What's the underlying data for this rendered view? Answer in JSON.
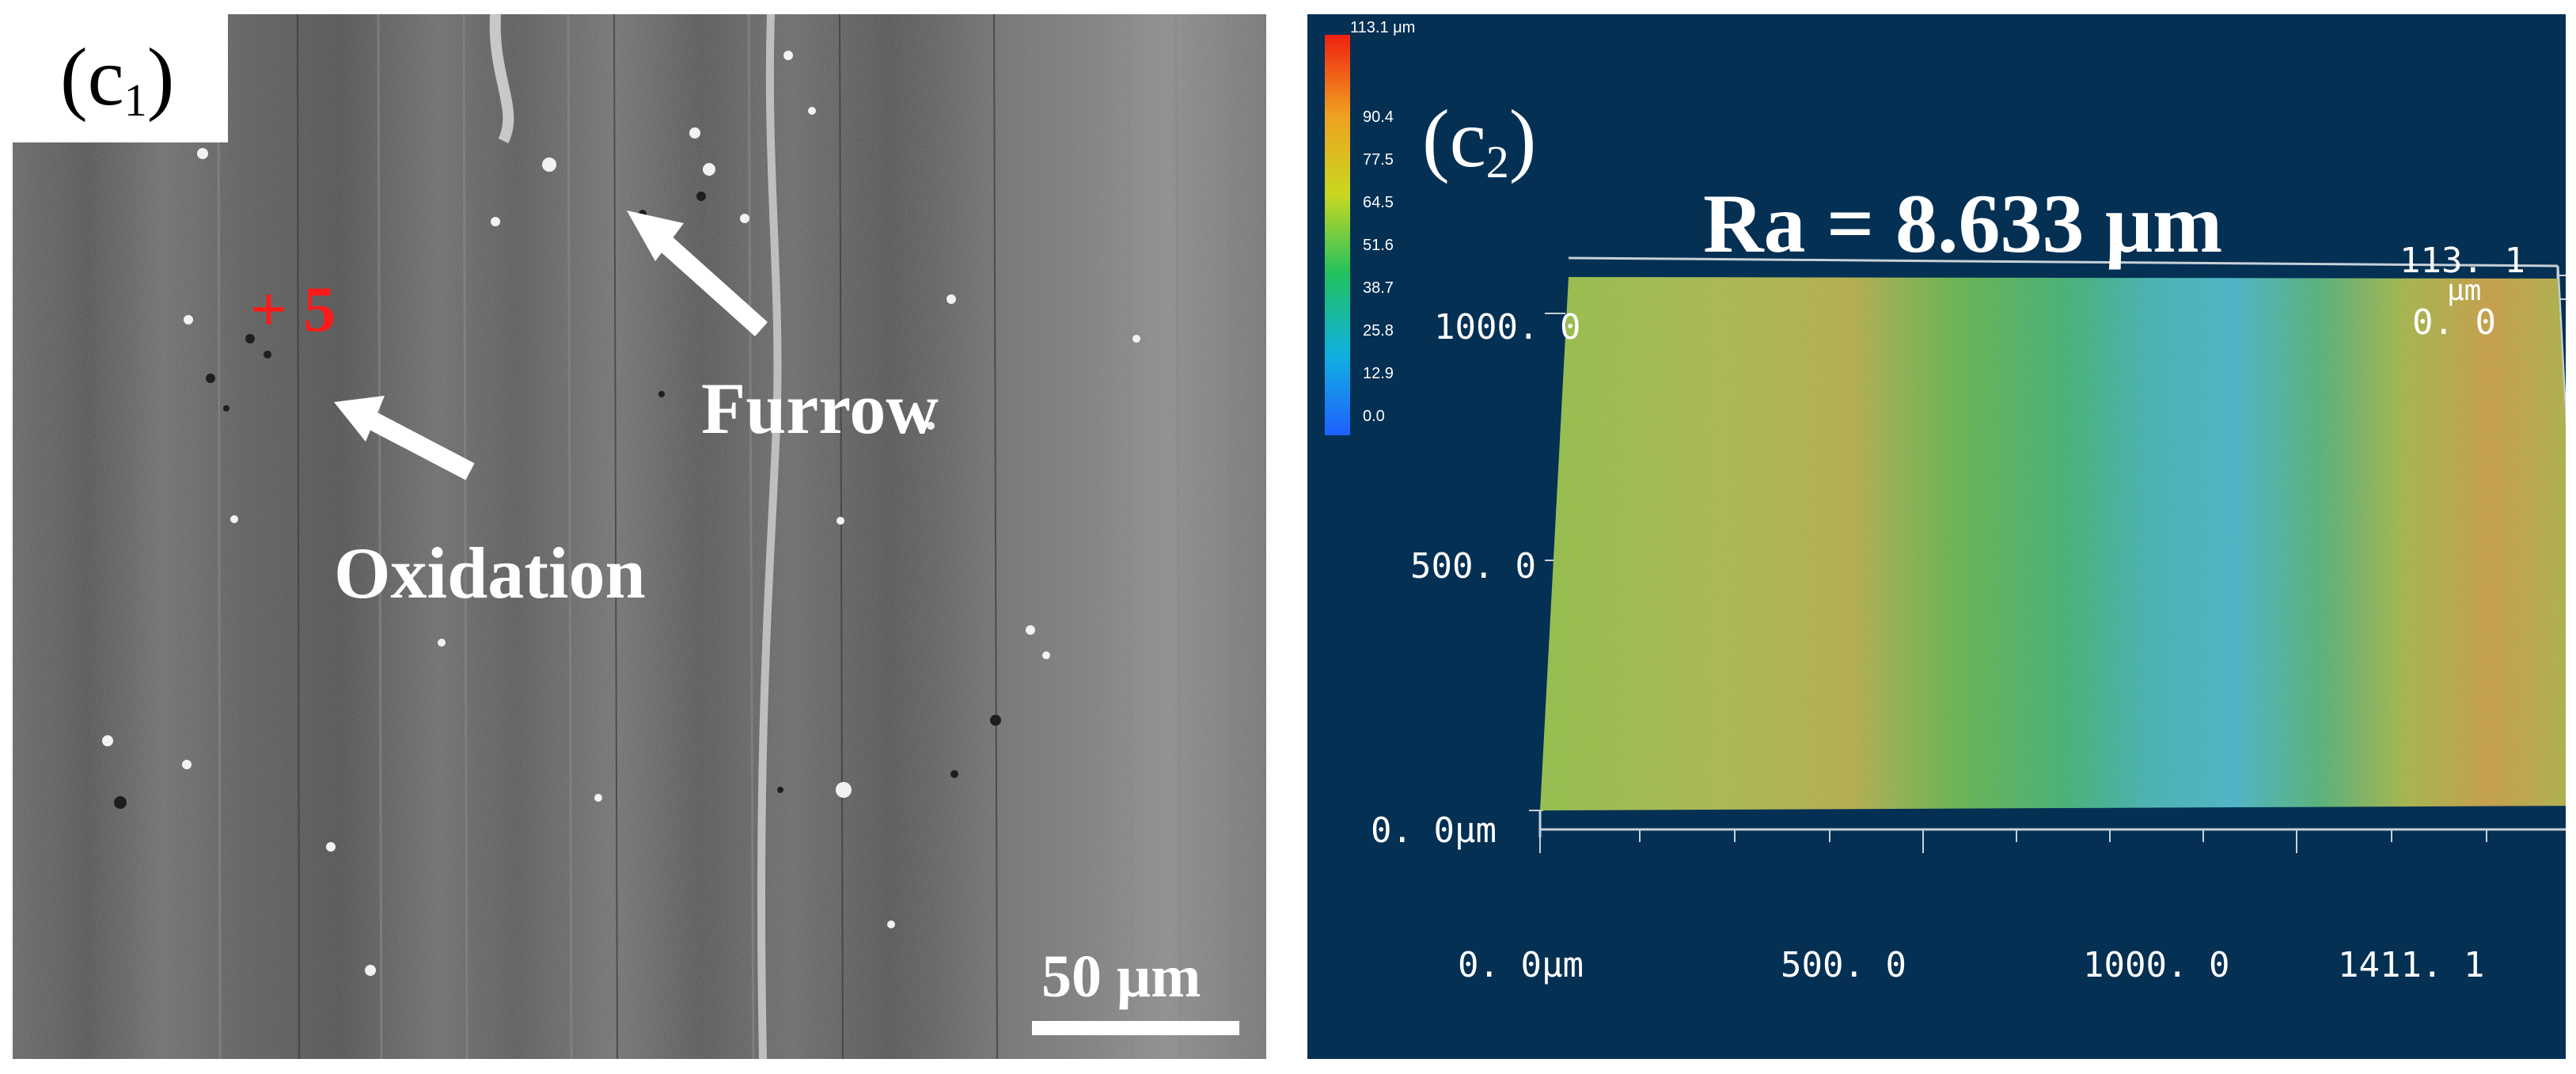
{
  "sem_panel": {
    "label_main": "(c",
    "label_sub": "1",
    "label_close": ")",
    "marker": "+ 5",
    "annotation_furrow": "Furrow",
    "annotation_oxidation": "Oxidation",
    "scale_bar": "50 μm"
  },
  "profile_panel": {
    "label_main": "(c",
    "label_sub": "2",
    "label_close": ")",
    "roughness": "Ra = 8.633 μm",
    "colorbar": {
      "max": "113.1 μm",
      "ticks": [
        "90.4",
        "77.5",
        "64.5",
        "51.6",
        "38.7",
        "25.8",
        "12.9",
        "0.0"
      ]
    },
    "y_axis": [
      "1000. 0",
      "500. 0",
      "0. 0μm"
    ],
    "x_axis": [
      "0. 0μm",
      "500. 0",
      "1000. 0",
      "1411. 1"
    ],
    "z_axis": [
      "113. 1",
      "μm",
      "0. 0"
    ]
  },
  "colors": {
    "profile_background": "#043054",
    "sem_background": "#5d5d5d",
    "marker_red": "#ff1a1a"
  }
}
